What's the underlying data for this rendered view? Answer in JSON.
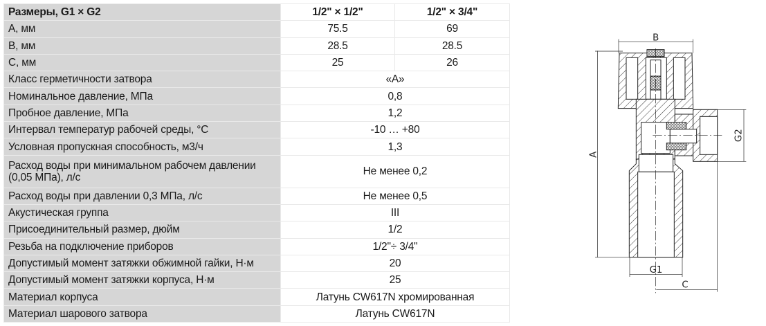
{
  "table": {
    "header": {
      "label": "Размеры, G1 × G2",
      "col1": "1/2\" × 1/2\"",
      "col2": "1/2\" × 3/4\""
    },
    "size_rows": [
      {
        "label": "A, мм",
        "v1": "75.5",
        "v2": "69"
      },
      {
        "label": "B, мм",
        "v1": "28.5",
        "v2": "28.5"
      },
      {
        "label": "C, мм",
        "v1": "25",
        "v2": "26"
      }
    ],
    "rows": [
      {
        "label": "Класс герметичности затвора",
        "value": "«А»"
      },
      {
        "label": "Номинальное давление, МПа",
        "value": "0,8"
      },
      {
        "label": "Пробное давление, МПа",
        "value": "1,2"
      },
      {
        "label": "Интервал температур рабочей среды, °С",
        "value": "-10 … +80"
      },
      {
        "label": "Условная пропускная способность, м3/ч",
        "value": "1,3"
      },
      {
        "label": "Расход воды при минимальном рабочем давлении (0,05 МПа), л/с",
        "value": "Не менее 0,2"
      },
      {
        "label": "Расход воды при давлении 0,3 МПа, л/с",
        "value": "Не менее 0,5"
      },
      {
        "label": "Акустическая группа",
        "value": "III"
      },
      {
        "label": "Присоединительный размер, дюйм",
        "value": "1/2"
      },
      {
        "label": "Резьба на подключение приборов",
        "value": "1/2\"÷ 3/4\""
      },
      {
        "label": "Допустимый момент затяжки обжимной гайки, Н·м",
        "value": "20"
      },
      {
        "label": "Допустимый момент затяжки корпуса, Н·м",
        "value": "25"
      },
      {
        "label": "Материал корпуса",
        "value": "Латунь CW617N  хромированная"
      },
      {
        "label": "Материал шарового затвора",
        "value": "Латунь CW617N"
      }
    ]
  },
  "drawing": {
    "dim_a": "A",
    "dim_b": "B",
    "dim_c": "C",
    "dim_g1": "G1",
    "dim_g2": "G2"
  }
}
